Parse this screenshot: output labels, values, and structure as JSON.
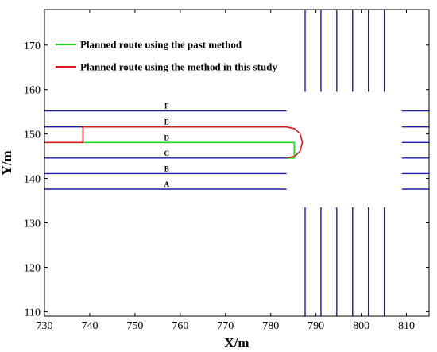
{
  "chart_data": {
    "type": "line",
    "xlabel": "X/m",
    "ylabel": "Y/m",
    "xlim": [
      730,
      815
    ],
    "ylim": [
      109,
      178
    ],
    "xticks": [
      730,
      740,
      750,
      760,
      770,
      780,
      790,
      800,
      810
    ],
    "yticks": [
      110,
      120,
      130,
      140,
      150,
      160,
      170
    ],
    "grid": false,
    "legend_position": "top-left",
    "lane_line_color": "#1a1aa6",
    "horizontal_lane_lines": [
      {
        "y": 155.2,
        "x": [
          730,
          783.5
        ]
      },
      {
        "y": 151.6,
        "x": [
          730,
          783.5
        ]
      },
      {
        "y": 144.6,
        "x": [
          730,
          783.5
        ]
      },
      {
        "y": 141.1,
        "x": [
          730,
          783.5
        ]
      },
      {
        "y": 137.6,
        "x": [
          730,
          783.5
        ]
      },
      {
        "y": 155.2,
        "x": [
          809,
          815
        ]
      },
      {
        "y": 151.6,
        "x": [
          809,
          815
        ]
      },
      {
        "y": 148.1,
        "x": [
          809,
          815
        ]
      },
      {
        "y": 144.6,
        "x": [
          809,
          815
        ]
      },
      {
        "y": 141.1,
        "x": [
          809,
          815
        ]
      },
      {
        "y": 137.6,
        "x": [
          809,
          815
        ]
      }
    ],
    "vertical_lane_lines": [
      {
        "x": 787.6,
        "y": [
          159.5,
          178
        ]
      },
      {
        "x": 791.1,
        "y": [
          159.5,
          178
        ]
      },
      {
        "x": 794.6,
        "y": [
          159.5,
          178
        ]
      },
      {
        "x": 798.1,
        "y": [
          159.5,
          178
        ]
      },
      {
        "x": 801.6,
        "y": [
          159.5,
          178
        ]
      },
      {
        "x": 805.1,
        "y": [
          159.5,
          178
        ]
      },
      {
        "x": 787.6,
        "y": [
          109,
          133.5
        ]
      },
      {
        "x": 791.1,
        "y": [
          109,
          133.5
        ]
      },
      {
        "x": 794.6,
        "y": [
          109,
          133.5
        ]
      },
      {
        "x": 798.1,
        "y": [
          109,
          133.5
        ]
      },
      {
        "x": 801.6,
        "y": [
          109,
          133.5
        ]
      },
      {
        "x": 805.1,
        "y": [
          109,
          133.5
        ]
      }
    ],
    "lane_labels": [
      {
        "text": "F",
        "x": 757,
        "y": 155.2
      },
      {
        "text": "E",
        "x": 757,
        "y": 151.6
      },
      {
        "text": "D",
        "x": 757,
        "y": 148.1
      },
      {
        "text": "C",
        "x": 757,
        "y": 144.6
      },
      {
        "text": "B",
        "x": 757,
        "y": 141.1
      },
      {
        "text": "A",
        "x": 757,
        "y": 137.6
      }
    ],
    "series": [
      {
        "name": "Planned route using the past method",
        "color": "#1bd81b",
        "x": [
          738.5,
          785.2,
          785.2,
          783.5
        ],
        "y": [
          148.1,
          148.1,
          144.6,
          144.6
        ]
      },
      {
        "name": "Planned route using the method in this study",
        "color": "#d81b1b",
        "x": [
          730,
          738.5,
          738.5,
          783.5,
          785.22,
          786.47,
          787.0,
          786.47,
          785.22,
          783.5
        ],
        "y": [
          148.1,
          148.1,
          151.6,
          151.6,
          151.22,
          150.1,
          148.1,
          146.1,
          144.98,
          144.6
        ]
      }
    ]
  }
}
